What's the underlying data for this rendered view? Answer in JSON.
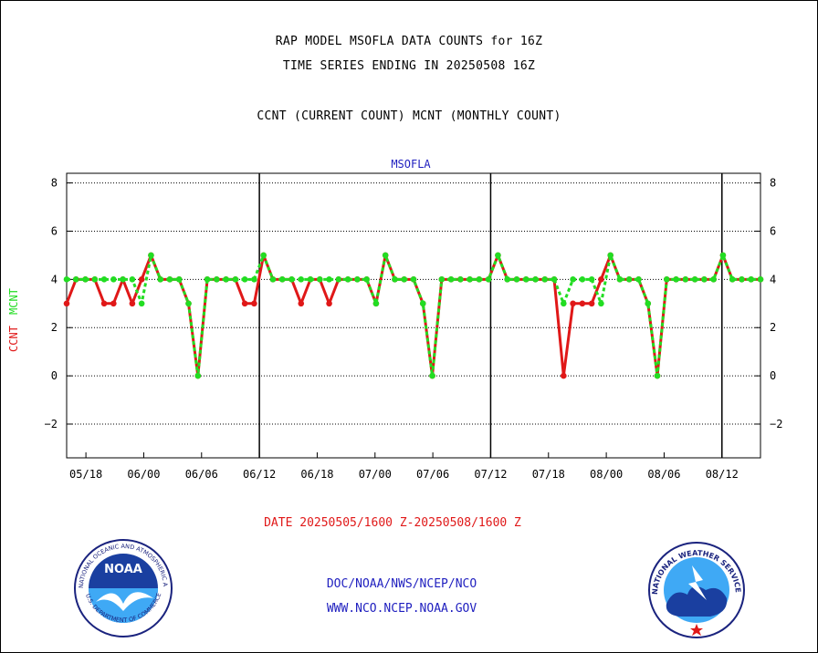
{
  "header": {
    "line1": "RAP MODEL MSOFLA DATA COUNTS for 16Z",
    "line2": "TIME SERIES ENDING IN 20250508 16Z",
    "line3": "CCNT (CURRENT COUNT) MCNT (MONTHLY COUNT)"
  },
  "chart_data": {
    "type": "line",
    "title": "MSOFLA",
    "ylabel_parts": [
      {
        "text": "CCNT",
        "color": "#e01818"
      },
      {
        "text": "MCNT",
        "color": "#22dd22"
      }
    ],
    "xlabel": "DATE 20250505/1600 Z-20250508/1600 Z",
    "ylim": [
      -3.4,
      8.4
    ],
    "yticks": [
      -2,
      0,
      2,
      4,
      6,
      8
    ],
    "xtick_labels": [
      "05/18",
      "06/00",
      "06/06",
      "06/12",
      "06/18",
      "07/00",
      "07/06",
      "07/12",
      "07/18",
      "08/00",
      "08/06",
      "08/12"
    ],
    "x_start": "05/16",
    "x_end": "08/16",
    "grid": "horizontal dotted",
    "day_separators": [
      "06/12",
      "07/12",
      "08/12"
    ],
    "series": [
      {
        "name": "CCNT",
        "color": "#e01818",
        "values": [
          3,
          4,
          4,
          4,
          3,
          3,
          4,
          3,
          4,
          5,
          4,
          4,
          4,
          3,
          0,
          4,
          4,
          4,
          4,
          3,
          3,
          5,
          4,
          4,
          4,
          3,
          4,
          4,
          3,
          4,
          4,
          4,
          4,
          3,
          5,
          4,
          4,
          4,
          3,
          0,
          4,
          4,
          4,
          4,
          4,
          4,
          5,
          4,
          4,
          4,
          4,
          4,
          4,
          0,
          3,
          3,
          3,
          4,
          5,
          4,
          4,
          4,
          3,
          0,
          4,
          4,
          4,
          4,
          4,
          4,
          5,
          4,
          4,
          4,
          4
        ]
      },
      {
        "name": "MCNT",
        "color": "#22dd22",
        "values": [
          4,
          4,
          4,
          4,
          4,
          4,
          4,
          4,
          3,
          5,
          4,
          4,
          4,
          3,
          0,
          4,
          4,
          4,
          4,
          4,
          4,
          5,
          4,
          4,
          4,
          4,
          4,
          4,
          4,
          4,
          4,
          4,
          4,
          3,
          5,
          4,
          4,
          4,
          3,
          0,
          4,
          4,
          4,
          4,
          4,
          4,
          5,
          4,
          4,
          4,
          4,
          4,
          4,
          3,
          4,
          4,
          4,
          3,
          5,
          4,
          4,
          4,
          3,
          0,
          4,
          4,
          4,
          4,
          4,
          4,
          5,
          4,
          4,
          4,
          4
        ]
      }
    ]
  },
  "footer": {
    "line1": "DOC/NOAA/NWS/NCEP/NCO",
    "line2": "WWW.NCO.NCEP.NOAA.GOV",
    "noaa_logo_text": "NOAA",
    "noaa_ring_text": "NATIONAL OCEANIC AND ATMOSPHERIC ADMINISTRATION",
    "noaa_ring_text_bottom": "U.S. DEPARTMENT OF COMMERCE",
    "nws_ring_text": "NATIONAL WEATHER SERVICE"
  },
  "colors": {
    "ccnt": "#e01818",
    "mcnt": "#22dd22",
    "title_blue": "#1f1fbf"
  }
}
